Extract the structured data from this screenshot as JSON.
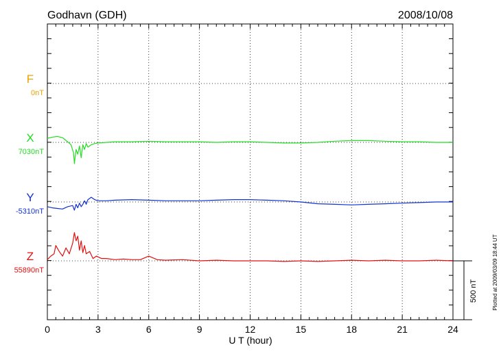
{
  "header": {
    "station": "Godhavn (GDH)",
    "date": "2008/10/08"
  },
  "plotted_note": "Plotted at 2009/03/09 18:44 UT",
  "scale_label": "500 nT",
  "chart_data": {
    "type": "line",
    "title": "Godhavn (GDH)",
    "date": "2008/10/08",
    "xlabel": "U T (hour)",
    "xlim": [
      0,
      24
    ],
    "xticks": [
      "0",
      "3",
      "6",
      "9",
      "12",
      "15",
      "18",
      "21",
      "24"
    ],
    "grid": true,
    "scale_bar_nT": 500,
    "series": [
      {
        "name": "F",
        "baseline_label": "0nT",
        "color": "#f0a000",
        "x": [],
        "y": []
      },
      {
        "name": "X",
        "baseline_label": "7030nT",
        "color": "#22dd22",
        "x": [
          0,
          0.3,
          0.6,
          0.9,
          1.2,
          1.4,
          1.55,
          1.6,
          1.65,
          1.7,
          1.8,
          1.9,
          2.0,
          2.1,
          2.2,
          2.3,
          2.4,
          2.6,
          2.8,
          3.0,
          3.5,
          4,
          5,
          6,
          7,
          8,
          9,
          10,
          11,
          12,
          13,
          14,
          15,
          16,
          17,
          18,
          19,
          20,
          21,
          22,
          23,
          24
        ],
        "y": [
          35,
          45,
          50,
          40,
          5,
          -20,
          -90,
          -180,
          -120,
          -60,
          -100,
          -30,
          -130,
          -20,
          -60,
          -10,
          -40,
          -20,
          -10,
          -5,
          0,
          5,
          5,
          10,
          5,
          5,
          5,
          0,
          5,
          5,
          0,
          -5,
          -5,
          0,
          10,
          15,
          15,
          10,
          5,
          5,
          0,
          0
        ]
      },
      {
        "name": "Y",
        "baseline_label": "-5310nT",
        "color": "#1030d0",
        "x": [
          0,
          0.3,
          0.6,
          0.9,
          1.2,
          1.5,
          1.6,
          1.7,
          1.8,
          1.9,
          2.0,
          2.1,
          2.2,
          2.3,
          2.4,
          2.6,
          2.8,
          3.0,
          3.5,
          4,
          5,
          6,
          7,
          8,
          9,
          10,
          11,
          12,
          13,
          14,
          15,
          16,
          17,
          18,
          19,
          20,
          21,
          22,
          23,
          24
        ],
        "y": [
          -40,
          -50,
          -55,
          -60,
          -40,
          -30,
          -70,
          -20,
          -50,
          -10,
          -40,
          -20,
          10,
          -20,
          20,
          40,
          20,
          10,
          10,
          15,
          20,
          15,
          10,
          10,
          10,
          15,
          20,
          20,
          15,
          10,
          0,
          -15,
          -20,
          -25,
          -20,
          -15,
          -10,
          -5,
          0,
          0
        ]
      },
      {
        "name": "Z",
        "baseline_label": "55890nT",
        "color": "#e01010",
        "x": [
          0,
          0.2,
          0.4,
          0.5,
          0.7,
          0.9,
          1.1,
          1.3,
          1.5,
          1.6,
          1.7,
          1.8,
          1.9,
          2.0,
          2.1,
          2.2,
          2.3,
          2.5,
          2.7,
          2.9,
          3.2,
          3.5,
          4,
          4.5,
          5,
          5.5,
          6,
          6.5,
          7,
          8,
          9,
          10,
          11,
          12,
          13,
          14,
          15,
          16,
          17,
          18,
          19,
          20,
          21,
          22,
          23,
          24
        ],
        "y": [
          10,
          40,
          60,
          130,
          80,
          40,
          110,
          60,
          150,
          240,
          170,
          210,
          90,
          170,
          70,
          130,
          60,
          80,
          20,
          40,
          20,
          20,
          10,
          15,
          10,
          10,
          40,
          10,
          5,
          10,
          0,
          5,
          0,
          0,
          0,
          -5,
          0,
          -5,
          0,
          5,
          0,
          5,
          0,
          0,
          5,
          0
        ]
      }
    ]
  }
}
